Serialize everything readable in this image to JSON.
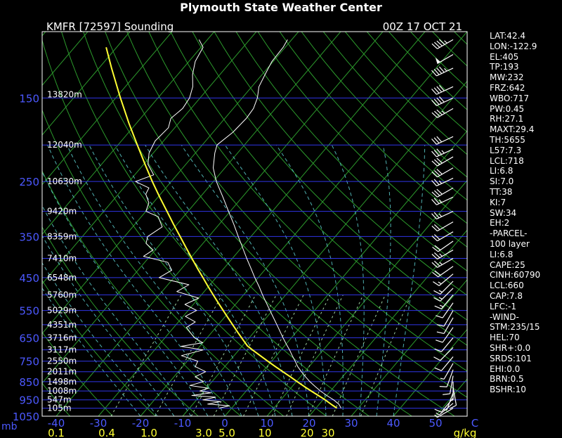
{
  "header": {
    "title": "Plymouth State Weather Center",
    "station": "KMFR [72597] Sounding",
    "datetime": "00Z 17 OCT 21"
  },
  "chart_data": {
    "type": "line",
    "chart_kind": "skew-t log-p sounding",
    "pressure_levels_mb": [
      150,
      250,
      350,
      450,
      550,
      650,
      750,
      850,
      950,
      1050
    ],
    "pressure_labels": [
      "150",
      "250",
      "350",
      "450",
      "550",
      "650",
      "750",
      "850",
      "950",
      "1050"
    ],
    "pressure_unit": "mb",
    "height_labels": [
      {
        "p": 147,
        "label": "13820m"
      },
      {
        "p": 200,
        "label": "12040m"
      },
      {
        "p": 250,
        "label": "10630m"
      },
      {
        "p": 300,
        "label": "9420m"
      },
      {
        "p": 350,
        "label": "8359m"
      },
      {
        "p": 400,
        "label": "7410m"
      },
      {
        "p": 450,
        "label": "6548m"
      },
      {
        "p": 500,
        "label": "5760m"
      },
      {
        "p": 550,
        "label": "5029m"
      },
      {
        "p": 600,
        "label": "4351m"
      },
      {
        "p": 650,
        "label": "3716m"
      },
      {
        "p": 700,
        "label": "3117m"
      },
      {
        "p": 750,
        "label": "2550m"
      },
      {
        "p": 800,
        "label": "2011m"
      },
      {
        "p": 850,
        "label": "1498m"
      },
      {
        "p": 900,
        "label": "1008m"
      },
      {
        "p": 950,
        "label": "547m"
      },
      {
        "p": 1000,
        "label": "105m"
      }
    ],
    "temp_ticks": [
      -40,
      -30,
      -20,
      -10,
      0,
      10,
      20,
      30,
      40,
      50
    ],
    "temp_tick_labels": [
      "-40",
      "-30",
      "-20",
      "-10",
      "0",
      "10",
      "20",
      "30",
      "40",
      "50"
    ],
    "temp_unit": "C",
    "mixing_ratio_ticks": [
      {
        "label": "0.1",
        "t": -40
      },
      {
        "label": "0.4",
        "t": -28
      },
      {
        "label": "1.0",
        "t": -18
      },
      {
        "label": "3.0",
        "t": -5
      },
      {
        "label": "5.0",
        "t": 0.5
      },
      {
        "label": "10",
        "t": 9.5
      },
      {
        "label": "20",
        "t": 19.5
      },
      {
        "label": "30",
        "t": 24.5
      }
    ],
    "mixing_ratio_unit": "g/kg",
    "xlim": [
      -40,
      57
    ],
    "ylim_mb": [
      100,
      1050
    ],
    "series": [
      {
        "kind": "temperature",
        "color": "#ffffff",
        "points": [
          [
            1000,
            26.0
          ],
          [
            975,
            24.6
          ],
          [
            950,
            22.5
          ],
          [
            925,
            20.0
          ],
          [
            900,
            17.6
          ],
          [
            875,
            15.4
          ],
          [
            850,
            13.2
          ],
          [
            825,
            11.2
          ],
          [
            800,
            9.2
          ],
          [
            775,
            7.3
          ],
          [
            750,
            5.6
          ],
          [
            725,
            3.8
          ],
          [
            700,
            2.0
          ],
          [
            675,
            0.0
          ],
          [
            650,
            -2.0
          ],
          [
            625,
            -4.0
          ],
          [
            600,
            -6.1
          ],
          [
            575,
            -8.3
          ],
          [
            550,
            -10.6
          ],
          [
            525,
            -13.0
          ],
          [
            500,
            -15.5
          ],
          [
            475,
            -18.0
          ],
          [
            450,
            -20.8
          ],
          [
            425,
            -23.6
          ],
          [
            400,
            -26.6
          ],
          [
            375,
            -29.7
          ],
          [
            350,
            -33.0
          ],
          [
            325,
            -36.5
          ],
          [
            300,
            -40.4
          ],
          [
            275,
            -44.6
          ],
          [
            250,
            -49.3
          ],
          [
            230,
            -52.8
          ],
          [
            210,
            -55.4
          ],
          [
            200,
            -56.5
          ],
          [
            185,
            -55.3
          ],
          [
            170,
            -54.9
          ],
          [
            160,
            -55.2
          ],
          [
            150,
            -56.4
          ],
          [
            140,
            -58.3
          ],
          [
            130,
            -59.3
          ],
          [
            120,
            -60.3
          ],
          [
            110,
            -60.5
          ],
          [
            105,
            -61.0
          ]
        ]
      },
      {
        "kind": "dewpoint",
        "color": "#ffffff",
        "points": [
          [
            1000,
            -3.0
          ],
          [
            985,
            -1.0
          ],
          [
            975,
            -6.5
          ],
          [
            960,
            -4.0
          ],
          [
            950,
            -8.5
          ],
          [
            935,
            -6.0
          ],
          [
            925,
            -12.0
          ],
          [
            910,
            -8.0
          ],
          [
            900,
            -11.0
          ],
          [
            885,
            -9.5
          ],
          [
            870,
            -14.5
          ],
          [
            850,
            -12.0
          ],
          [
            825,
            -15.0
          ],
          [
            800,
            -13.5
          ],
          [
            775,
            -17.0
          ],
          [
            750,
            -17.5
          ],
          [
            725,
            -22.5
          ],
          [
            700,
            -18.5
          ],
          [
            685,
            -24.5
          ],
          [
            670,
            -20.0
          ],
          [
            650,
            -23.0
          ],
          [
            630,
            -25.0
          ],
          [
            610,
            -27.0
          ],
          [
            590,
            -26.0
          ],
          [
            570,
            -29.5
          ],
          [
            550,
            -28.0
          ],
          [
            530,
            -32.0
          ],
          [
            510,
            -30.0
          ],
          [
            490,
            -36.5
          ],
          [
            470,
            -35.0
          ],
          [
            450,
            -43.5
          ],
          [
            430,
            -42.0
          ],
          [
            410,
            -44.5
          ],
          [
            395,
            -51.5
          ],
          [
            380,
            -50.5
          ],
          [
            365,
            -53.5
          ],
          [
            350,
            -54.5
          ],
          [
            330,
            -53.0
          ],
          [
            310,
            -56.0
          ],
          [
            300,
            -60.0
          ],
          [
            285,
            -61.0
          ],
          [
            270,
            -63.5
          ],
          [
            260,
            -64.0
          ],
          [
            250,
            -68.5
          ],
          [
            240,
            -65.5
          ],
          [
            225,
            -69.0
          ],
          [
            210,
            -71.0
          ],
          [
            195,
            -72.0
          ],
          [
            180,
            -71.5
          ],
          [
            170,
            -72.8
          ],
          [
            160,
            -72.0
          ],
          [
            150,
            -72.5
          ],
          [
            140,
            -74.0
          ],
          [
            130,
            -76.5
          ],
          [
            120,
            -78.5
          ],
          [
            110,
            -79.5
          ],
          [
            105,
            -82.0
          ]
        ]
      },
      {
        "kind": "parcel",
        "color": "#ffff33",
        "points": [
          [
            1000,
            25.0
          ],
          [
            980,
            23.2
          ],
          [
            950,
            20.5
          ],
          [
            925,
            18.0
          ],
          [
            900,
            15.4
          ],
          [
            875,
            12.8
          ],
          [
            850,
            10.2
          ],
          [
            825,
            7.6
          ],
          [
            800,
            4.8
          ],
          [
            775,
            2.0
          ],
          [
            750,
            -0.9
          ],
          [
            725,
            -3.8
          ],
          [
            700,
            -6.8
          ],
          [
            683,
            -8.8
          ],
          [
            660,
            -10.9
          ],
          [
            630,
            -13.7
          ],
          [
            600,
            -16.6
          ],
          [
            575,
            -19.1
          ],
          [
            550,
            -21.7
          ],
          [
            525,
            -24.4
          ],
          [
            500,
            -27.2
          ],
          [
            475,
            -30.1
          ],
          [
            450,
            -33.1
          ],
          [
            425,
            -36.3
          ],
          [
            400,
            -39.6
          ],
          [
            375,
            -43.1
          ],
          [
            350,
            -46.8
          ],
          [
            325,
            -50.8
          ],
          [
            300,
            -55.0
          ],
          [
            275,
            -59.6
          ],
          [
            250,
            -64.5
          ],
          [
            225,
            -69.7
          ],
          [
            200,
            -75.4
          ],
          [
            175,
            -81.8
          ],
          [
            150,
            -88.9
          ],
          [
            125,
            -97.0
          ],
          [
            110,
            -102.5
          ]
        ]
      }
    ],
    "wind_barbs": [
      {
        "p": 105,
        "dir": 240,
        "spd": 45
      },
      {
        "p": 115,
        "dir": 240,
        "spd": 50
      },
      {
        "p": 125,
        "dir": 245,
        "spd": 45
      },
      {
        "p": 140,
        "dir": 245,
        "spd": 40
      },
      {
        "p": 150,
        "dir": 245,
        "spd": 40
      },
      {
        "p": 160,
        "dir": 240,
        "spd": 35
      },
      {
        "p": 190,
        "dir": 245,
        "spd": 30
      },
      {
        "p": 205,
        "dir": 245,
        "spd": 35
      },
      {
        "p": 215,
        "dir": 240,
        "spd": 30
      },
      {
        "p": 230,
        "dir": 240,
        "spd": 30
      },
      {
        "p": 245,
        "dir": 245,
        "spd": 25
      },
      {
        "p": 260,
        "dir": 240,
        "spd": 30
      },
      {
        "p": 275,
        "dir": 245,
        "spd": 25
      },
      {
        "p": 300,
        "dir": 245,
        "spd": 25
      },
      {
        "p": 320,
        "dir": 240,
        "spd": 20
      },
      {
        "p": 340,
        "dir": 240,
        "spd": 20
      },
      {
        "p": 360,
        "dir": 235,
        "spd": 20
      },
      {
        "p": 380,
        "dir": 240,
        "spd": 25
      },
      {
        "p": 400,
        "dir": 240,
        "spd": 25
      },
      {
        "p": 420,
        "dir": 235,
        "spd": 20
      },
      {
        "p": 440,
        "dir": 230,
        "spd": 15
      },
      {
        "p": 460,
        "dir": 225,
        "spd": 15
      },
      {
        "p": 480,
        "dir": 225,
        "spd": 15
      },
      {
        "p": 500,
        "dir": 220,
        "spd": 15
      },
      {
        "p": 525,
        "dir": 215,
        "spd": 10
      },
      {
        "p": 550,
        "dir": 210,
        "spd": 10
      },
      {
        "p": 575,
        "dir": 210,
        "spd": 10
      },
      {
        "p": 610,
        "dir": 215,
        "spd": 10
      },
      {
        "p": 650,
        "dir": 220,
        "spd": 10
      },
      {
        "p": 690,
        "dir": 225,
        "spd": 10
      },
      {
        "p": 730,
        "dir": 220,
        "spd": 10
      },
      {
        "p": 760,
        "dir": 210,
        "spd": 5
      },
      {
        "p": 790,
        "dir": 200,
        "spd": 10
      },
      {
        "p": 820,
        "dir": 190,
        "spd": 10
      },
      {
        "p": 850,
        "dir": 180,
        "spd": 5
      },
      {
        "p": 880,
        "dir": 170,
        "spd": 10
      },
      {
        "p": 910,
        "dir": 200,
        "spd": 5
      },
      {
        "p": 940,
        "dir": 220,
        "spd": 10
      },
      {
        "p": 970,
        "dir": 230,
        "spd": 5
      },
      {
        "p": 1000,
        "dir": 240,
        "spd": 5
      }
    ],
    "colors": {
      "isobar": "#2f35e6",
      "isotherm": "#2c9a2c",
      "dry_adiabat": "#2c9a2c",
      "moist_adiabat": "#4fb0b0",
      "mixing_ratio": "#9ecfa0",
      "temperature": "#ffffff",
      "parcel": "#ffff33",
      "axis_label": "#4c59ff",
      "background": "#000000"
    }
  },
  "indices": [
    "LAT:42.4",
    "LON:-122.9",
    "EL:405",
    "TP:193",
    "MW:232",
    "FRZ:642",
    "WBO:717",
    "PW:0.45",
    "RH:27.1",
    "MAXT:29.4",
    "TH:5655",
    "L57:7.3",
    "LCL:718",
    "LI:6.8",
    "SI:7.0",
    "TT:38",
    "KI:7",
    "SW:34",
    "EH:2",
    "-PARCEL-",
    "100 layer",
    "LI:6.8",
    "CAPE:25",
    "CINH:60790",
    "LCL:660",
    "CAP:7.8",
    "LFC:-1",
    "-WIND-",
    "STM:235/15",
    "HEL:70",
    "SHR+:0.0",
    "SRDS:101",
    "EHI:0.0",
    "BRN:0.5",
    "BSHR:10"
  ]
}
